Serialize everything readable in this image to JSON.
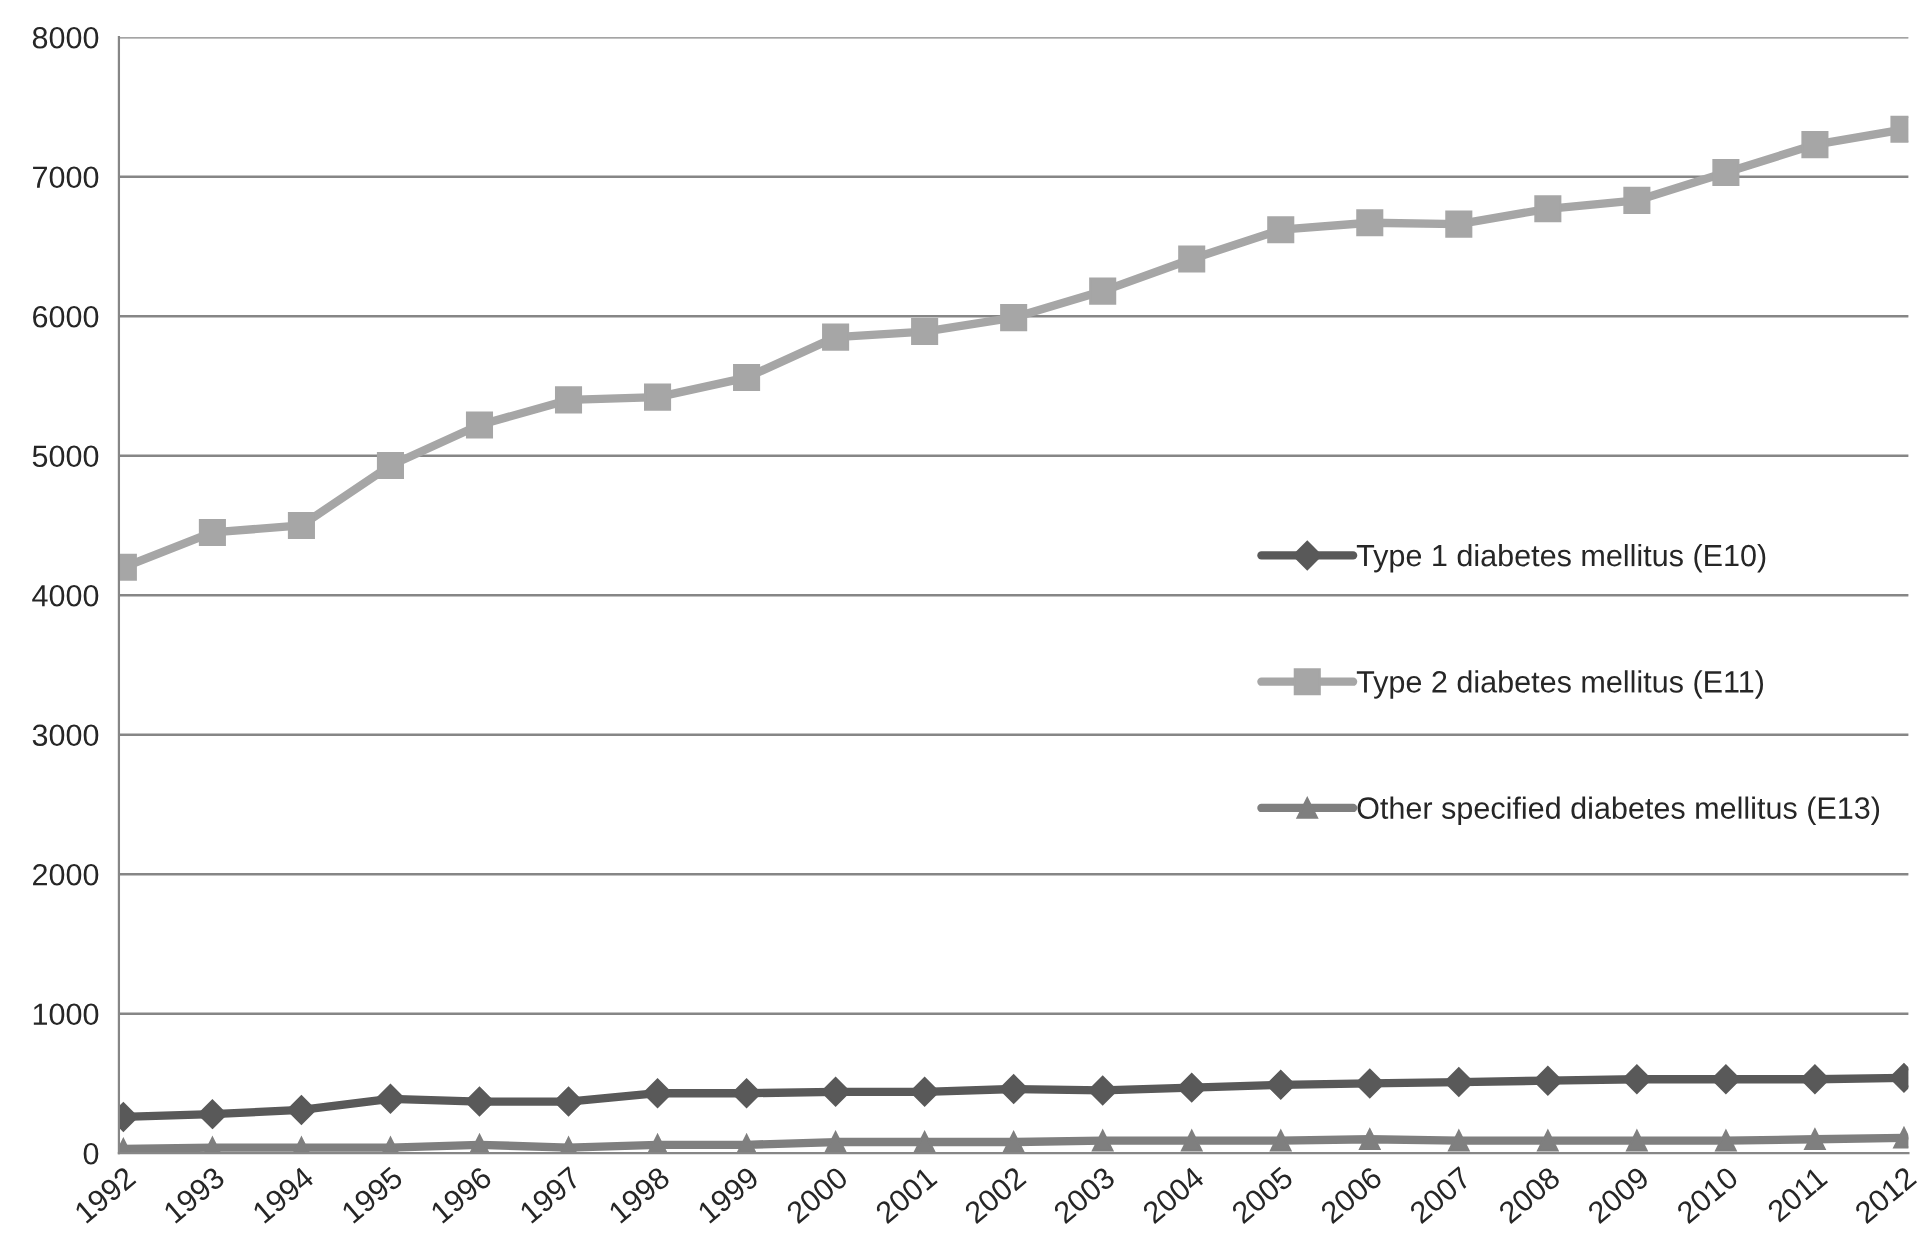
{
  "chart_data": {
    "type": "line",
    "categories": [
      "1992",
      "1993",
      "1994",
      "1995",
      "1996",
      "1997",
      "1998",
      "1999",
      "2000",
      "2001",
      "2002",
      "2003",
      "2004",
      "2005",
      "2006",
      "2007",
      "2008",
      "2009",
      "2010",
      "2011",
      "2012"
    ],
    "series": [
      {
        "name": "Type 1 diabetes mellitus (E10)",
        "color": "#595959",
        "marker": "diamond",
        "values": [
          260,
          280,
          310,
          390,
          370,
          370,
          430,
          430,
          440,
          440,
          460,
          450,
          470,
          490,
          500,
          510,
          520,
          530,
          530,
          530,
          540
        ]
      },
      {
        "name": "Type 2 diabetes mellitus (E11)",
        "color": "#a6a6a6",
        "marker": "square",
        "values": [
          4200,
          4450,
          4500,
          4930,
          5220,
          5400,
          5420,
          5560,
          5850,
          5890,
          5990,
          6180,
          6410,
          6620,
          6670,
          6660,
          6770,
          6830,
          7030,
          7230,
          7340
        ]
      },
      {
        "name": "Other specified diabetes mellitus (E13)",
        "color": "#7f7f7f",
        "marker": "triangle",
        "values": [
          30,
          40,
          40,
          40,
          60,
          40,
          60,
          60,
          80,
          80,
          80,
          90,
          90,
          90,
          100,
          90,
          90,
          90,
          90,
          100,
          110
        ]
      }
    ],
    "ylim": [
      0,
      8000
    ],
    "yticks": [
      0,
      1000,
      2000,
      3000,
      4000,
      5000,
      6000,
      7000,
      8000
    ],
    "grid": "y",
    "legend": "right",
    "line_style": "solid"
  }
}
